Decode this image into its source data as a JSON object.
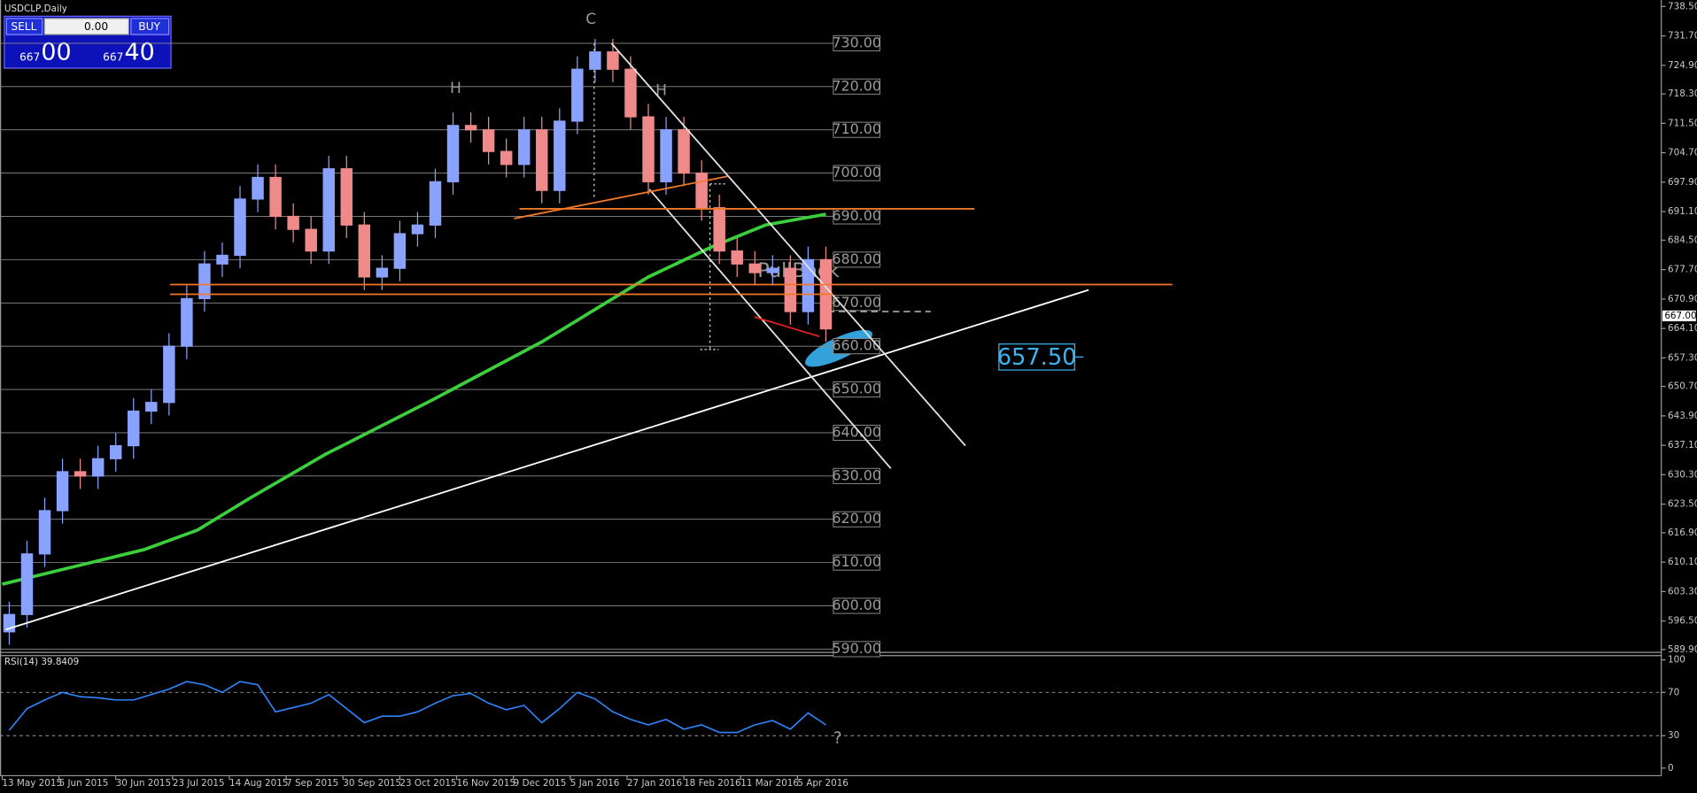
{
  "chart_data": [
    {
      "type": "candlestick",
      "title": "USDCLP,Daily",
      "x": [
        2,
        7,
        12,
        17,
        22,
        27,
        32,
        37,
        42,
        47,
        52,
        57,
        62,
        67,
        72,
        77,
        82,
        87,
        92,
        97,
        102,
        107,
        112,
        117,
        122,
        127,
        132,
        137,
        142,
        147,
        152,
        157,
        162,
        167,
        172,
        177,
        182,
        187,
        192,
        197,
        202,
        207,
        212,
        217,
        222,
        227,
        232
      ],
      "open": [
        594,
        598,
        612,
        622,
        631,
        630,
        634,
        637,
        645,
        647,
        660,
        671,
        679,
        681,
        694,
        699,
        690,
        687,
        682,
        701,
        688,
        676,
        678,
        686,
        688,
        698,
        711,
        710,
        705,
        702,
        710,
        696,
        712,
        724,
        728,
        724,
        713,
        698,
        710,
        700,
        692,
        682,
        679,
        677,
        678,
        668,
        680
      ],
      "high": [
        601,
        615,
        625,
        634,
        634,
        637,
        640,
        648,
        650,
        663,
        674,
        682,
        684,
        697,
        702,
        702,
        693,
        690,
        704,
        704,
        691,
        681,
        689,
        691,
        701,
        714,
        714,
        713,
        708,
        713,
        713,
        715,
        727,
        731,
        731,
        727,
        716,
        713,
        713,
        703,
        695,
        685,
        682,
        681,
        681,
        683,
        683
      ],
      "low": [
        591,
        595,
        609,
        619,
        627,
        627,
        631,
        634,
        642,
        644,
        657,
        668,
        676,
        678,
        691,
        687,
        684,
        679,
        679,
        685,
        673,
        673,
        675,
        683,
        685,
        695,
        707,
        702,
        699,
        699,
        693,
        693,
        709,
        721,
        721,
        710,
        695,
        695,
        697,
        689,
        679,
        676,
        674,
        674,
        665,
        665,
        661
      ],
      "close": [
        598,
        612,
        622,
        631,
        630,
        634,
        637,
        645,
        647,
        660,
        671,
        679,
        681,
        694,
        699,
        690,
        687,
        682,
        701,
        688,
        676,
        678,
        686,
        688,
        698,
        711,
        710,
        705,
        702,
        710,
        696,
        712,
        724,
        728,
        724,
        713,
        698,
        710,
        700,
        692,
        682,
        679,
        677,
        678,
        668,
        680,
        664
      ],
      "up_color": "#8aa2ff",
      "down_color": "#f08a8a",
      "xlim": [
        0,
        467
      ],
      "ylim": [
        589.25,
        740
      ],
      "xticks": [
        {
          "value": 0,
          "label": "13 May 2015"
        },
        {
          "value": 16,
          "label": "5 Jun 2015"
        },
        {
          "value": 32,
          "label": "30 Jun 2015"
        },
        {
          "value": 48,
          "label": "23 Jul 2015"
        },
        {
          "value": 64,
          "label": "14 Aug 2015"
        },
        {
          "value": 80,
          "label": "7 Sep 2015"
        },
        {
          "value": 96,
          "label": "30 Sep 2015"
        },
        {
          "value": 112,
          "label": "23 Oct 2015"
        },
        {
          "value": 128,
          "label": "16 Nov 2015"
        },
        {
          "value": 144,
          "label": "9 Dec 2015"
        },
        {
          "value": 160,
          "label": "5 Jan 2016"
        },
        {
          "value": 176,
          "label": "27 Jan 2016"
        },
        {
          "value": 192,
          "label": "18 Feb 2016"
        },
        {
          "value": 208,
          "label": "11 Mar 2016"
        },
        {
          "value": 224,
          "label": "5 Apr 2016"
        }
      ],
      "yticks": [
        {
          "value": 738.5,
          "label": "738.50"
        },
        {
          "value": 731.7,
          "label": "731.70"
        },
        {
          "value": 724.9,
          "label": "724.90"
        },
        {
          "value": 718.3,
          "label": "718.30"
        },
        {
          "value": 711.5,
          "label": "711.50"
        },
        {
          "value": 704.7,
          "label": "704.70"
        },
        {
          "value": 697.9,
          "label": "697.90"
        },
        {
          "value": 691.1,
          "label": "691.10"
        },
        {
          "value": 684.5,
          "label": "684.50"
        },
        {
          "value": 677.7,
          "label": "677.70"
        },
        {
          "value": 670.9,
          "label": "670.90"
        },
        {
          "value": 664.1,
          "label": "664.10"
        },
        {
          "value": 657.3,
          "label": "657.30"
        },
        {
          "value": 650.7,
          "label": "650.70"
        },
        {
          "value": 643.9,
          "label": "643.90"
        },
        {
          "value": 637.1,
          "label": "637.10"
        },
        {
          "value": 630.3,
          "label": "630.30"
        },
        {
          "value": 623.5,
          "label": "623.50"
        },
        {
          "value": 616.9,
          "label": "616.90"
        },
        {
          "value": 610.1,
          "label": "610.10"
        },
        {
          "value": 603.3,
          "label": "603.30"
        },
        {
          "value": 596.5,
          "label": "596.50"
        },
        {
          "value": 589.9,
          "label": "589.90"
        }
      ],
      "price_levels": [
        {
          "value": 730,
          "label": "730.00"
        },
        {
          "value": 720,
          "label": "720.00"
        },
        {
          "value": 710,
          "label": "710.00"
        },
        {
          "value": 700,
          "label": "700.00"
        },
        {
          "value": 690,
          "label": "690.00"
        },
        {
          "value": 680,
          "label": "680.00"
        },
        {
          "value": 670,
          "label": "670.00"
        },
        {
          "value": 660,
          "label": "660.00"
        },
        {
          "value": 650,
          "label": "650.00"
        },
        {
          "value": 640,
          "label": "640.00"
        },
        {
          "value": 630,
          "label": "630.00"
        },
        {
          "value": 620,
          "label": "620.00"
        },
        {
          "value": 610,
          "label": "610.00"
        },
        {
          "value": 600,
          "label": "600.00"
        },
        {
          "value": 590,
          "label": "590.00"
        }
      ],
      "grid": true,
      "moving_average": {
        "color": "#3ccf3c",
        "x": [
          0,
          20,
          40,
          55,
          70,
          91,
          121,
          152,
          182,
          200,
          215,
          232
        ],
        "values": [
          605,
          609,
          613,
          617.5,
          625,
          635,
          647.5,
          661,
          676,
          683,
          688,
          690.5
        ]
      },
      "lines": [
        {
          "color": "#ffffff",
          "x": [
            1,
            306
          ],
          "y": [
            594.5,
            673
          ]
        },
        {
          "color": "#e0e0e0",
          "x": [
            171.6,
            271.3
          ],
          "y": [
            730,
            637
          ]
        },
        {
          "color": "#e0e0e0",
          "x": [
            182.3,
            250.3
          ],
          "y": [
            696.25,
            631.75
          ]
        },
        {
          "color": "#f07828",
          "x": [
            145.7,
            273.8
          ],
          "y": [
            691.75,
            691.75
          ]
        },
        {
          "color": "#f07828",
          "x": [
            47.3,
            329.6
          ],
          "y": [
            674.25,
            674.25
          ]
        },
        {
          "color": "#f07828",
          "x": [
            47.3,
            234
          ],
          "y": [
            672,
            672
          ]
        },
        {
          "color": "#f07828",
          "x": [
            144.2,
            204.3
          ],
          "y": [
            689.5,
            699.25
          ]
        },
        {
          "color": "#e02020",
          "x": [
            211.9,
            230.2
          ],
          "y": [
            666.75,
            662.25
          ]
        }
      ],
      "last_price": {
        "value": 667,
        "label": "667.00"
      },
      "target": {
        "value": 657.5,
        "label": "657.50"
      },
      "annotations": [
        "C",
        "H",
        "H",
        "PullBack"
      ]
    },
    {
      "type": "line",
      "title": "RSI(14) 39.8409",
      "x": [
        2,
        7,
        12,
        17,
        22,
        27,
        32,
        37,
        42,
        47,
        52,
        57,
        62,
        67,
        72,
        77,
        82,
        87,
        92,
        97,
        102,
        107,
        112,
        117,
        122,
        127,
        132,
        137,
        142,
        147,
        152,
        157,
        162,
        167,
        172,
        177,
        182,
        187,
        192,
        197,
        202,
        207,
        212,
        217,
        222,
        227,
        232
      ],
      "values": [
        35,
        55,
        63,
        70,
        66,
        65,
        63,
        63,
        68,
        73,
        80,
        77,
        70,
        80,
        77,
        52,
        56,
        60,
        68,
        55,
        42,
        48,
        48,
        52,
        60,
        67,
        69,
        60,
        54,
        58,
        42,
        55,
        70,
        64,
        52,
        45,
        40,
        45,
        36,
        40,
        33,
        33,
        40,
        44,
        36,
        51,
        40
      ],
      "color": "#2f86ff",
      "xlim": [
        0,
        467
      ],
      "ylim": [
        0,
        100
      ],
      "yticks": [
        0,
        30,
        70,
        100
      ],
      "grid_levels": [
        30,
        70
      ],
      "annotation": "?"
    }
  ],
  "trade_panel": {
    "sell": "SELL",
    "buy": "BUY",
    "lots": "0.00",
    "bid_prefix": "667",
    "bid_suffix": "00",
    "ask_prefix": "667",
    "ask_suffix": "40"
  }
}
